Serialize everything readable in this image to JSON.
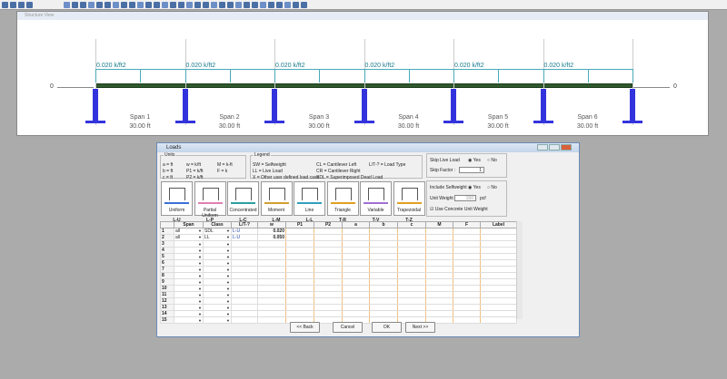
{
  "structure_view": {
    "title": "Structure View",
    "zero_left": "0",
    "zero_right": "0",
    "load_label": "0.020 k/ft2",
    "spans": [
      {
        "name": "Span 1",
        "length": "30.00 ft"
      },
      {
        "name": "Span 2",
        "length": "30.00 ft"
      },
      {
        "name": "Span 3",
        "length": "30.00 ft"
      },
      {
        "name": "Span 4",
        "length": "30.00 ft"
      },
      {
        "name": "Span 5",
        "length": "30.00 ft"
      },
      {
        "name": "Span 6",
        "length": "30.00 ft"
      }
    ]
  },
  "dialog": {
    "title": "Loads",
    "units": {
      "title": "Units",
      "items": [
        "a = ft",
        "b = ft",
        "c = ft",
        "w = k/ft",
        "P1 = k/ft",
        "P2 = k/ft",
        "M = k-ft",
        "F = k"
      ]
    },
    "legend": {
      "title": "Legend",
      "items": [
        "SW = Selfweight",
        "LL = Live Load",
        "X = Other user defined load case",
        "CL = Cantilever Left",
        "CR = Cantilever Right",
        "SDL = Superimposed Dead Load",
        "L/T-? = Load Type"
      ]
    },
    "load_types": [
      {
        "name": "Uniform",
        "code": "L-U",
        "color": "#3a6fd8"
      },
      {
        "name": "Partial Uniform",
        "code": "L-P",
        "color": "#e080b0"
      },
      {
        "name": "Concentrated",
        "code": "L-C",
        "color": "#2aa0a0"
      },
      {
        "name": "Moment",
        "code": "L-M",
        "color": "#d0a030"
      },
      {
        "name": "Line",
        "code": "L-L",
        "color": "#30a0c0"
      },
      {
        "name": "Triangle",
        "code": "T-R",
        "color": "#e0a020"
      },
      {
        "name": "Variable",
        "code": "T-V",
        "color": "#a070d0"
      },
      {
        "name": "Trapezoidal",
        "code": "T-Z",
        "color": "#e0a020"
      }
    ],
    "skip_live_load": {
      "label": "Skip Live Load",
      "yes": "Yes",
      "no": "No",
      "selected": "Yes",
      "factor_label": "Skip Factor :",
      "factor": "1"
    },
    "selfweight": {
      "label": "Include Selfweight",
      "yes": "Yes",
      "no": "No",
      "selected": "Yes",
      "unit_weight_label": "Unit Weight :",
      "unit_weight": "150",
      "unit": "pcf",
      "concrete_label": "Use Concrete Unit Weight",
      "concrete_checked": true
    },
    "grid": {
      "columns": [
        "",
        "Span",
        "Class",
        "L/T-?",
        "w",
        "P1",
        "P2",
        "a",
        "b",
        "c",
        "M",
        "F",
        "Label"
      ],
      "rows": [
        [
          "1",
          "all",
          "SDL",
          "L-U",
          "0.020",
          "",
          "",
          "",
          "",
          "",
          "",
          "",
          ""
        ],
        [
          "2",
          "all",
          "LL",
          "L-U",
          "0.050",
          "",
          "",
          "",
          "",
          "",
          "",
          "",
          ""
        ],
        [
          "3"
        ],
        [
          "4"
        ],
        [
          "5"
        ],
        [
          "6"
        ],
        [
          "7"
        ],
        [
          "8"
        ],
        [
          "9"
        ],
        [
          "10"
        ],
        [
          "11"
        ],
        [
          "12"
        ],
        [
          "13"
        ],
        [
          "14"
        ],
        [
          "15"
        ]
      ]
    },
    "buttons": {
      "back": "<< Back",
      "cancel": "Cancel",
      "ok": "OK",
      "next": "Next >>"
    }
  }
}
